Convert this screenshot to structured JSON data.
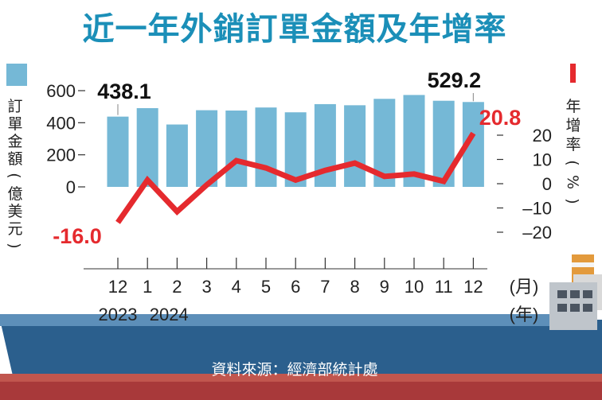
{
  "title": "近一年外銷訂單金額及年增率",
  "source": "資料來源：經濟部統計處",
  "colors": {
    "bar": "#75b8d6",
    "line": "#e52a2e",
    "title": "#1b8fb8",
    "ship": "#2f6a99",
    "ship_hull": "#2b5f8d",
    "hull_red": "#a8393a"
  },
  "chart_data": {
    "type": "bar+line",
    "title": "近一年外銷訂單金額及年增率",
    "x_month_labels": [
      "12",
      "1",
      "2",
      "3",
      "4",
      "5",
      "6",
      "7",
      "8",
      "9",
      "10",
      "11",
      "12"
    ],
    "x_month_unit": "(月)",
    "x_year_labels": [
      "2023",
      "2024"
    ],
    "x_year_unit": "(年)",
    "series": [
      {
        "name": "訂單金額",
        "axis": "left",
        "type": "bar",
        "values": [
          438.1,
          491,
          389,
          478,
          476,
          495,
          465,
          516,
          509,
          549,
          573,
          537,
          529.2
        ]
      },
      {
        "name": "年增率",
        "axis": "right",
        "type": "line",
        "values": [
          -16.0,
          1.5,
          -11.5,
          -0.5,
          9.5,
          6.5,
          1.5,
          5.5,
          8.5,
          3.0,
          4.0,
          1.0,
          20.8
        ]
      }
    ],
    "left_axis": {
      "label": "訂單金額(億美元)",
      "ticks": [
        "0",
        "200",
        "400",
        "600"
      ],
      "range": [
        0,
        600
      ]
    },
    "right_axis": {
      "label": "年增率(%)",
      "ticks": [
        "20",
        "10",
        "0",
        "-10",
        "-20"
      ],
      "range": [
        -20,
        20
      ]
    },
    "annotations": {
      "first_bar": "438.1",
      "last_bar": "529.2",
      "first_rate": "-16.0",
      "last_rate": "20.8"
    },
    "legend": "top-left (bar) / top-right (line)"
  }
}
